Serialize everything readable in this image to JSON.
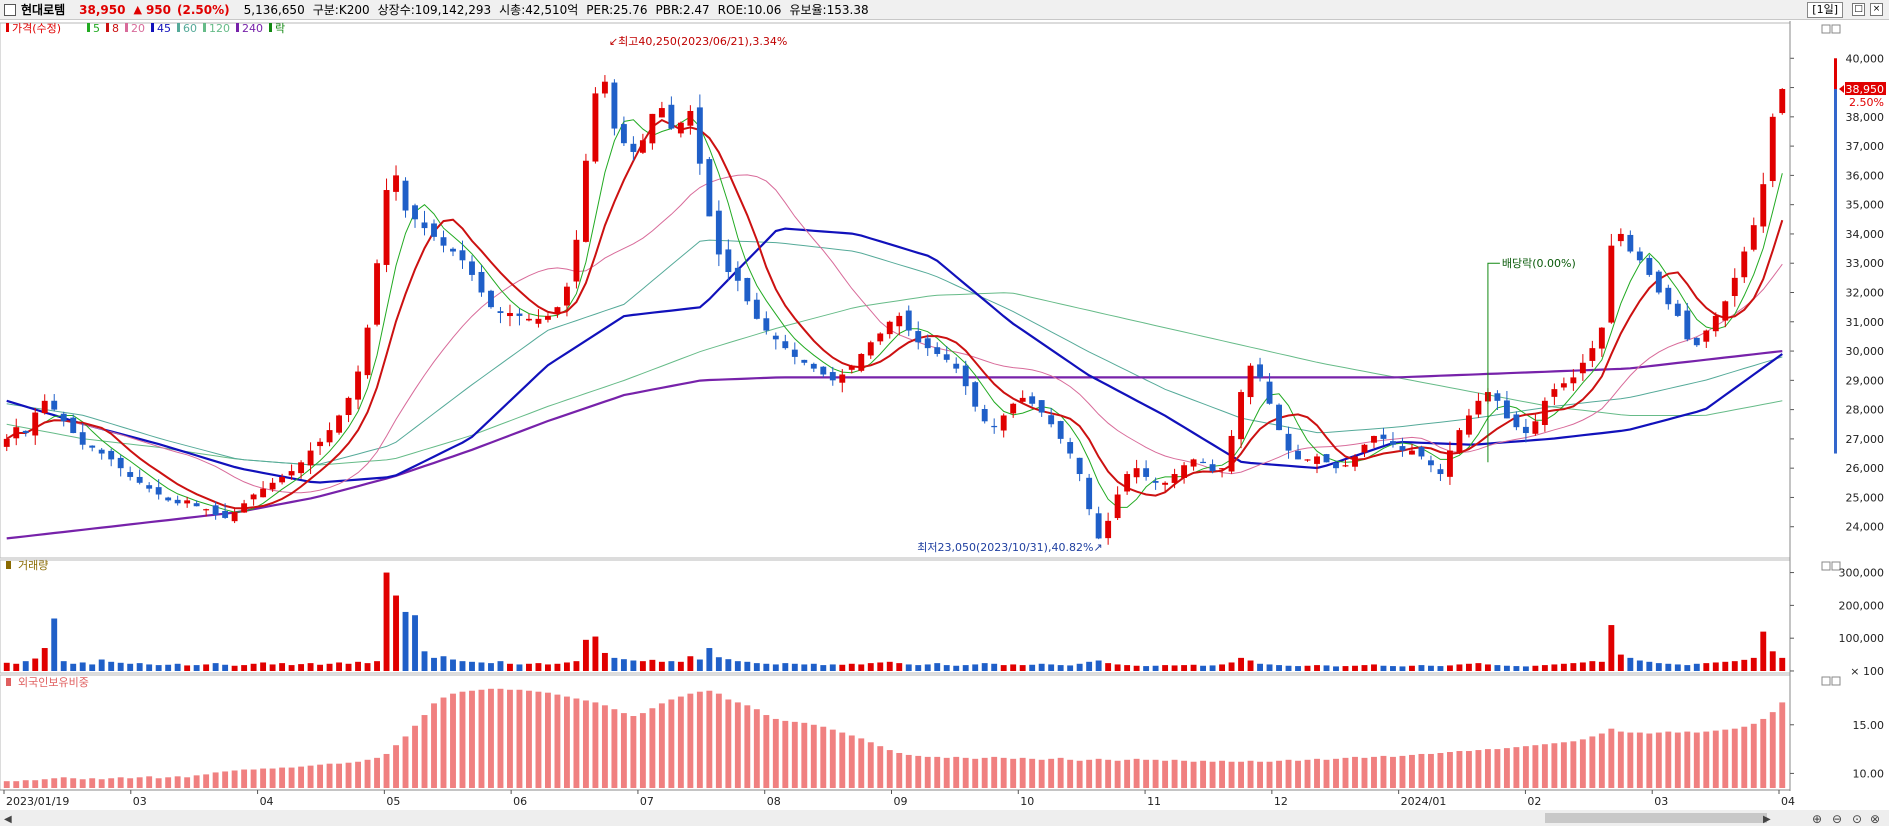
{
  "header": {
    "stock_name": "현대로템",
    "price": "38,950",
    "change": "950",
    "change_pct": "(2.50%)",
    "volume": "5,136,650",
    "market": "구분:K200",
    "shares": "상장수:109,142,293",
    "market_cap": "시총:42,510억",
    "per": "PER:25.76",
    "pbr": "PBR:2.47",
    "roe": "ROE:10.06",
    "float": "유보율:153.38",
    "period": "[1일]"
  },
  "colors": {
    "up": "#e00000",
    "down": "#1f5fc8",
    "ma5": "#22aa22",
    "ma8": "#cc1111",
    "ma20": "#d86b9a",
    "ma45": "#1111bb",
    "ma60": "#55aa99",
    "ma120": "#66bb88",
    "ma240": "#7722aa",
    "foreign": "#f08080"
  },
  "chart_data": [
    {
      "type": "candlestick",
      "legend": [
        {
          "label": "가격(수정)",
          "color": "#e00000"
        },
        {
          "label": "5",
          "color": "#22aa22"
        },
        {
          "label": "8",
          "color": "#cc1111"
        },
        {
          "label": "20",
          "color": "#d86b9a"
        },
        {
          "label": "45",
          "color": "#1111bb"
        },
        {
          "label": "60",
          "color": "#55aa99"
        },
        {
          "label": "120",
          "color": "#66bb88"
        },
        {
          "label": "240",
          "color": "#7722aa"
        },
        {
          "label": "락",
          "color": "#118811"
        }
      ],
      "ylim": [
        23000,
        41000
      ],
      "yticks": [
        "24,000",
        "25,000",
        "26,000",
        "27,000",
        "28,000",
        "29,000",
        "30,000",
        "31,000",
        "32,000",
        "33,000",
        "34,000",
        "35,000",
        "36,000",
        "37,000",
        "38,000",
        "39,000",
        "40,000"
      ],
      "x_labels": [
        "2023/01/19",
        "03",
        "04",
        "05",
        "06",
        "07",
        "08",
        "09",
        "10",
        "11",
        "12",
        "2024/01",
        "02",
        "03",
        "04"
      ],
      "close_series": [
        27000,
        27400,
        27200,
        27900,
        28300,
        28000,
        27600,
        27200,
        26800,
        26700,
        26500,
        26300,
        26000,
        25700,
        25500,
        25300,
        25100,
        24900,
        24800,
        24900,
        24700,
        24600,
        24400,
        24300,
        24500,
        24800,
        25100,
        25300,
        25500,
        25700,
        25900,
        26200,
        26600,
        26900,
        27300,
        27800,
        28400,
        29300,
        30800,
        33000,
        35500,
        36000,
        34800,
        34500,
        34200,
        33900,
        33600,
        33400,
        33100,
        32600,
        32000,
        31500,
        31300,
        31300,
        31200,
        31100,
        31100,
        31200,
        31500,
        32200,
        33800,
        36500,
        38800,
        39200,
        37600,
        37100,
        36800,
        37200,
        38100,
        38300,
        37600,
        37800,
        38200,
        36400,
        34600,
        33300,
        32700,
        32400,
        31700,
        31100,
        30700,
        30400,
        30100,
        29800,
        29600,
        29400,
        29200,
        29000,
        29200,
        29500,
        29900,
        30300,
        30600,
        31000,
        31200,
        30700,
        30300,
        30100,
        29900,
        29700,
        29400,
        28800,
        28100,
        27600,
        27400,
        27800,
        28200,
        28400,
        28200,
        27900,
        27500,
        27000,
        26500,
        25800,
        24600,
        23600,
        24200,
        25100,
        25800,
        26000,
        25700,
        25500,
        25500,
        25800,
        26100,
        26300,
        26200,
        25900,
        26000,
        27100,
        28600,
        29500,
        29100,
        28200,
        27300,
        26600,
        26300,
        26300,
        26400,
        26200,
        26000,
        26100,
        26400,
        26800,
        27100,
        27000,
        26800,
        26600,
        26600,
        26400,
        26100,
        25800,
        26600,
        27300,
        27800,
        28300,
        28600,
        28300,
        27700,
        27400,
        27200,
        27600,
        28300,
        28700,
        28900,
        29100,
        29600,
        30100,
        30800,
        33600,
        34000,
        33400,
        33100,
        32600,
        32000,
        31600,
        31200,
        30400,
        30200,
        30700,
        31200,
        31700,
        32500,
        33400,
        34300,
        35700,
        38000,
        38950
      ],
      "ma_series": [
        {
          "name": "45",
          "points": [
            28300,
            27500,
            26800,
            26000,
            25500,
            25700,
            27000,
            29500,
            31200,
            31500,
            34200,
            34000,
            33200,
            31000,
            29200,
            27800,
            26200,
            26000,
            26900,
            26800,
            27000,
            27300,
            28000,
            29900
          ]
        },
        {
          "name": "240",
          "points": [
            23600,
            23900,
            24200,
            24500,
            25000,
            25700,
            26600,
            27600,
            28500,
            29000,
            29100,
            29100,
            29100,
            29100,
            29100,
            29100,
            29100,
            29100,
            29100,
            29200,
            29300,
            29400,
            29700,
            30000
          ]
        },
        {
          "name": "60",
          "points": [
            28200,
            27800,
            27000,
            26300,
            26100,
            26800,
            28800,
            30700,
            31600,
            33800,
            33700,
            33400,
            32600,
            31400,
            30000,
            28700,
            27700,
            27200,
            27400,
            27700,
            28100,
            28400,
            29000,
            29800
          ]
        },
        {
          "name": "120",
          "points": [
            27500,
            27000,
            26700,
            26300,
            26100,
            26300,
            27100,
            28100,
            29000,
            30000,
            30800,
            31500,
            31900,
            32000,
            31400,
            30800,
            30200,
            29600,
            29100,
            28600,
            28100,
            27800,
            27800,
            28300
          ]
        }
      ],
      "annotations": {
        "high": "최고40,250(2023/06/21),3.34%",
        "low": "최저23,050(2023/10/31),40.82%",
        "dividend": "배당락(0.00%)",
        "last_price": "38,950",
        "last_pct": "2.50%"
      }
    },
    {
      "type": "bar",
      "title": "거래량",
      "ylim": [
        0,
        320000
      ],
      "yticks": [
        "100",
        "100,000",
        "200,000",
        "300,000"
      ],
      "values": [
        25000,
        22000,
        30000,
        38000,
        70000,
        160000,
        30000,
        22000,
        26000,
        20000,
        35000,
        28000,
        25000,
        22000,
        24000,
        20000,
        18000,
        19000,
        22000,
        17000,
        18000,
        20000,
        24000,
        19000,
        16000,
        18000,
        22000,
        26000,
        20000,
        24000,
        18000,
        21000,
        24000,
        19000,
        22000,
        26000,
        22000,
        28000,
        24000,
        30000,
        300000,
        230000,
        180000,
        170000,
        60000,
        40000,
        45000,
        35000,
        30000,
        28000,
        26000,
        24000,
        30000,
        22000,
        20000,
        22000,
        24000,
        20000,
        22000,
        26000,
        30000,
        95000,
        105000,
        55000,
        40000,
        36000,
        32000,
        30000,
        34000,
        28000,
        30000,
        28000,
        45000,
        35000,
        70000,
        42000,
        36000,
        30000,
        28000,
        24000,
        22000,
        20000,
        24000,
        22000,
        20000,
        22000,
        18000,
        20000,
        19000,
        22000,
        20000,
        24000,
        26000,
        28000,
        24000,
        20000,
        18000,
        20000,
        24000,
        18000,
        16000,
        18000,
        20000,
        24000,
        22000,
        18000,
        20000,
        18000,
        19000,
        22000,
        20000,
        18000,
        17000,
        22000,
        28000,
        32000,
        24000,
        20000,
        18000,
        16000,
        15000,
        16000,
        18000,
        17000,
        18000,
        19000,
        16000,
        17000,
        20000,
        26000,
        40000,
        32000,
        22000,
        20000,
        18000,
        16000,
        15000,
        16000,
        18000,
        17000,
        14000,
        15000,
        16000,
        18000,
        20000,
        16000,
        15000,
        14000,
        16000,
        18000,
        16000,
        15000,
        17000,
        20000,
        22000,
        24000,
        20000,
        18000,
        16000,
        15000,
        14000,
        16000,
        18000,
        20000,
        22000,
        24000,
        26000,
        30000,
        28000,
        140000,
        50000,
        40000,
        32000,
        28000,
        24000,
        22000,
        20000,
        18000,
        22000,
        24000,
        26000,
        28000,
        30000,
        34000,
        40000,
        120000,
        60000,
        40000
      ]
    },
    {
      "type": "bar",
      "title": "외국인보유비중",
      "ylim": [
        8.5,
        19.5
      ],
      "yticks": [
        "10.00",
        "15.00"
      ],
      "values": [
        9.2,
        9.2,
        9.3,
        9.3,
        9.4,
        9.5,
        9.6,
        9.5,
        9.4,
        9.5,
        9.4,
        9.5,
        9.6,
        9.5,
        9.6,
        9.7,
        9.5,
        9.6,
        9.7,
        9.6,
        9.8,
        9.9,
        10.1,
        10.2,
        10.3,
        10.4,
        10.4,
        10.5,
        10.5,
        10.6,
        10.6,
        10.7,
        10.8,
        10.9,
        11.0,
        11.0,
        11.1,
        11.2,
        11.4,
        11.6,
        12.0,
        12.9,
        13.8,
        14.9,
        16.0,
        17.2,
        17.8,
        18.2,
        18.4,
        18.5,
        18.6,
        18.7,
        18.7,
        18.6,
        18.6,
        18.5,
        18.4,
        18.3,
        18.1,
        17.9,
        17.7,
        17.5,
        17.3,
        17.0,
        16.6,
        16.2,
        15.9,
        16.2,
        16.7,
        17.2,
        17.6,
        17.9,
        18.2,
        18.4,
        18.5,
        18.2,
        17.6,
        17.3,
        17.0,
        16.6,
        16.0,
        15.6,
        15.4,
        15.3,
        15.2,
        15.0,
        14.8,
        14.5,
        14.2,
        13.9,
        13.6,
        13.2,
        12.8,
        12.4,
        12.1,
        11.9,
        11.8,
        11.7,
        11.7,
        11.6,
        11.7,
        11.6,
        11.5,
        11.6,
        11.7,
        11.6,
        11.5,
        11.6,
        11.5,
        11.4,
        11.5,
        11.6,
        11.4,
        11.3,
        11.4,
        11.5,
        11.4,
        11.3,
        11.4,
        11.5,
        11.4,
        11.4,
        11.3,
        11.4,
        11.3,
        11.2,
        11.3,
        11.2,
        11.3,
        11.2,
        11.2,
        11.3,
        11.2,
        11.2,
        11.3,
        11.4,
        11.3,
        11.4,
        11.5,
        11.4,
        11.5,
        11.6,
        11.7,
        11.6,
        11.7,
        11.8,
        11.7,
        11.8,
        11.9,
        12.0,
        12.0,
        12.1,
        12.2,
        12.3,
        12.3,
        12.4,
        12.5,
        12.5,
        12.6,
        12.7,
        12.8,
        12.9,
        13.0,
        13.1,
        13.2,
        13.3,
        13.5,
        13.8,
        14.1,
        14.6,
        14.3,
        14.2,
        14.2,
        14.1,
        14.2,
        14.3,
        14.2,
        14.3,
        14.2,
        14.3,
        14.4,
        14.5,
        14.6,
        14.8,
        15.1,
        15.6,
        16.3,
        17.3,
        17.5
      ]
    }
  ]
}
